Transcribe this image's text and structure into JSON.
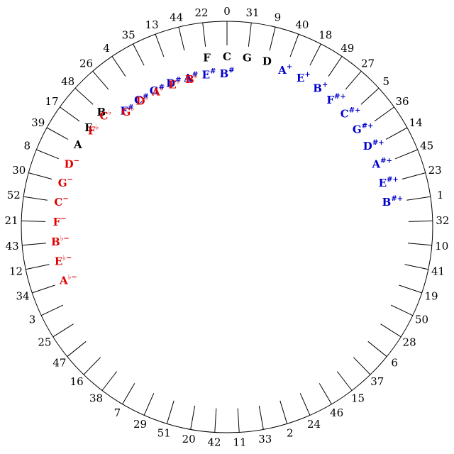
{
  "colors": {
    "background": "#ffffff",
    "line": "#000000",
    "natural": "#000000",
    "flat": "#e00000",
    "sharp": "#0000cc"
  },
  "steps": 53,
  "ring": [
    0,
    31,
    9,
    40,
    18,
    49,
    27,
    5,
    36,
    14,
    45,
    23,
    1,
    32,
    10,
    41,
    19,
    50,
    28,
    6,
    37,
    15,
    46,
    24,
    2,
    33,
    11,
    42,
    20,
    51,
    29,
    7,
    38,
    16,
    47,
    25,
    3,
    34,
    12,
    43,
    21,
    52,
    30,
    8,
    39,
    17,
    48,
    26,
    4,
    35,
    13,
    44,
    22
  ],
  "notes": [
    {
      "step": 0,
      "base": "C",
      "acc": "",
      "color": "natural"
    },
    {
      "step": 31,
      "base": "G",
      "acc": "",
      "color": "natural"
    },
    {
      "step": 9,
      "base": "D",
      "acc": "",
      "color": "natural"
    },
    {
      "step": 22,
      "base": "F",
      "acc": "",
      "color": "natural"
    },
    {
      "step": 48,
      "base": "B",
      "acc": "",
      "color": "natural"
    },
    {
      "step": 17,
      "base": "E",
      "acc": "",
      "color": "natural"
    },
    {
      "step": 39,
      "base": "A",
      "acc": "",
      "color": "natural"
    },
    {
      "step": 40,
      "base": "A",
      "acc": "+",
      "color": "sharp"
    },
    {
      "step": 18,
      "base": "E",
      "acc": "+",
      "color": "sharp"
    },
    {
      "step": 49,
      "base": "B",
      "acc": "+",
      "color": "sharp"
    },
    {
      "step": 27,
      "base": "F",
      "acc": "#+",
      "color": "sharp"
    },
    {
      "step": 5,
      "base": "C",
      "acc": "#+",
      "color": "sharp"
    },
    {
      "step": 36,
      "base": "G",
      "acc": "#+",
      "color": "sharp"
    },
    {
      "step": 14,
      "base": "D",
      "acc": "#+",
      "color": "sharp"
    },
    {
      "step": 45,
      "base": "A",
      "acc": "#+",
      "color": "sharp"
    },
    {
      "step": 23,
      "base": "E",
      "acc": "#+",
      "color": "sharp"
    },
    {
      "step": 1,
      "base": "B",
      "acc": "#+",
      "color": "sharp"
    },
    {
      "step": 44,
      "base": "A",
      "acc": "#",
      "color": "sharp"
    },
    {
      "step": 22,
      "base": "E",
      "acc": "#",
      "color": "sharp"
    },
    {
      "step": 0,
      "base": "B",
      "acc": "#",
      "color": "sharp"
    },
    {
      "step": 4,
      "base": "C",
      "acc": "#",
      "color": "sharp"
    },
    {
      "step": 26,
      "base": "F",
      "acc": "#",
      "color": "sharp"
    },
    {
      "step": 35,
      "base": "G",
      "acc": "#",
      "color": "sharp"
    },
    {
      "step": 13,
      "base": "D",
      "acc": "#",
      "color": "sharp"
    },
    {
      "step": 35,
      "base": "A",
      "acc": "♭",
      "color": "flat"
    },
    {
      "step": 13,
      "base": "E",
      "acc": "♭",
      "color": "flat"
    },
    {
      "step": 44,
      "base": "B",
      "acc": "♭",
      "color": "flat"
    },
    {
      "step": 4,
      "base": "D",
      "acc": "♭",
      "color": "flat"
    },
    {
      "step": 26,
      "base": "G",
      "acc": "♭",
      "color": "flat"
    },
    {
      "step": 48,
      "base": "C",
      "acc": "♭",
      "color": "flat"
    },
    {
      "step": 17,
      "base": "F",
      "acc": "♭",
      "color": "flat"
    },
    {
      "step": 8,
      "base": "D",
      "acc": "−",
      "color": "flat"
    },
    {
      "step": 30,
      "base": "G",
      "acc": "−",
      "color": "flat"
    },
    {
      "step": 52,
      "base": "C",
      "acc": "−",
      "color": "flat"
    },
    {
      "step": 21,
      "base": "F",
      "acc": "−",
      "color": "flat"
    },
    {
      "step": 43,
      "base": "B",
      "acc": "♭−",
      "color": "flat"
    },
    {
      "step": 12,
      "base": "E",
      "acc": "♭−",
      "color": "flat"
    },
    {
      "step": 34,
      "base": "A",
      "acc": "♭−",
      "color": "flat"
    }
  ]
}
